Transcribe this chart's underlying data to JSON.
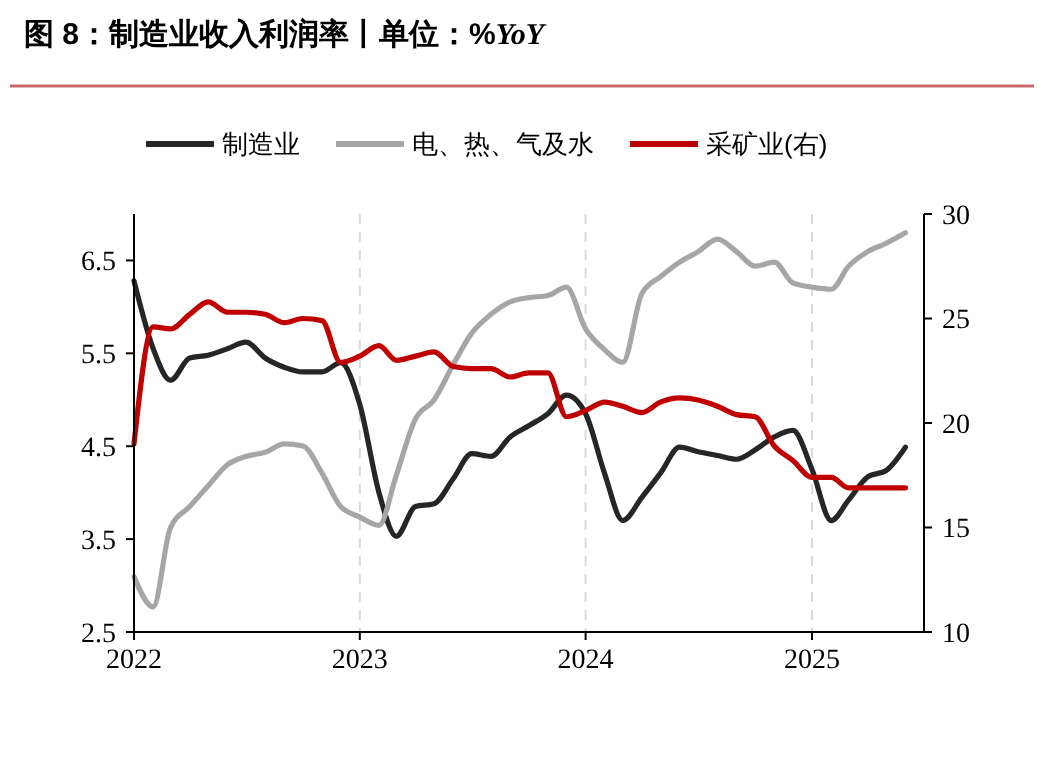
{
  "chart_data": {
    "type": "line",
    "title": "图 8：制造业收入利润率丨单位：%YoY",
    "xlim": [
      "2022-01",
      "2025-07"
    ],
    "xticks": [
      {
        "value": "2022-01",
        "label": "2022"
      },
      {
        "value": "2023-01",
        "label": "2023"
      },
      {
        "value": "2024-01",
        "label": "2024"
      },
      {
        "value": "2025-01",
        "label": "2025"
      }
    ],
    "ylim": [
      2.5,
      7
    ],
    "yticks": [
      2.5,
      3.5,
      4.5,
      5.5,
      6.5
    ],
    "y2lim": [
      10,
      30
    ],
    "y2ticks": [
      10,
      15,
      20,
      25,
      30
    ],
    "grid": "x",
    "legend": "top",
    "marker": "none",
    "line_style": "solid",
    "series": [
      {
        "name": "制造业",
        "color": "#262626",
        "x": [
          "2022-01",
          "2022-02",
          "2022-03",
          "2022-04",
          "2022-05",
          "2022-06",
          "2022-07",
          "2022-08",
          "2022-09",
          "2022-10",
          "2022-11",
          "2022-12",
          "2023-01",
          "2023-02",
          "2023-03",
          "2023-04",
          "2023-05",
          "2023-06",
          "2023-07",
          "2023-08",
          "2023-09",
          "2023-10",
          "2023-11",
          "2023-12",
          "2024-01",
          "2024-02",
          "2024-03",
          "2024-04",
          "2024-05",
          "2024-06",
          "2024-07",
          "2024-08",
          "2024-09",
          "2024-10",
          "2024-11",
          "2024-12",
          "2025-01",
          "2025-02",
          "2025-03",
          "2025-04",
          "2025-05",
          "2025-06"
        ],
        "values": [
          6.28,
          5.55,
          5.21,
          5.45,
          5.48,
          5.55,
          5.62,
          5.45,
          5.35,
          5.3,
          5.3,
          5.4,
          4.95,
          4.0,
          3.53,
          3.85,
          3.88,
          4.15,
          4.42,
          4.39,
          4.6,
          4.72,
          4.85,
          5.05,
          4.85,
          4.2,
          3.7,
          3.95,
          4.21,
          4.49,
          4.44,
          4.4,
          4.36,
          4.46,
          4.6,
          4.67,
          4.25,
          3.7,
          3.92,
          4.17,
          4.24,
          4.49
        ]
      },
      {
        "name": "电、热、气及水",
        "color": "#a6a6a6",
        "axis": "y2",
        "x": [
          "2022-01",
          "2022-02",
          "2022-03",
          "2022-04",
          "2022-05",
          "2022-06",
          "2022-07",
          "2022-08",
          "2022-09",
          "2022-10",
          "2022-11",
          "2022-12",
          "2023-01",
          "2023-02",
          "2023-03",
          "2023-04",
          "2023-05",
          "2023-06",
          "2023-07",
          "2023-08",
          "2023-09",
          "2023-10",
          "2023-11",
          "2023-12",
          "2024-01",
          "2024-02",
          "2024-03",
          "2024-04",
          "2024-05",
          "2024-06",
          "2024-07",
          "2024-08",
          "2024-09",
          "2024-10",
          "2024-11",
          "2024-12",
          "2025-01",
          "2025-02",
          "2025-03",
          "2025-04",
          "2025-05",
          "2025-06"
        ],
        "values": [
          12.65,
          11.2,
          15.0,
          16.0,
          17.0,
          18.0,
          18.4,
          18.6,
          19.0,
          18.9,
          17.6,
          16.0,
          15.5,
          15.1,
          17.5,
          20.2,
          21.1,
          22.8,
          24.3,
          25.2,
          25.8,
          26.0,
          26.1,
          26.5,
          24.5,
          23.5,
          22.9,
          26.2,
          27.0,
          27.7,
          28.2,
          28.8,
          28.2,
          27.5,
          27.7,
          26.7,
          26.5,
          26.4,
          27.5,
          28.2,
          28.6,
          29.1
        ]
      },
      {
        "name": "采矿业(右)",
        "color": "#c00000",
        "axis": "y2",
        "x": [
          "2022-01",
          "2022-02",
          "2022-03",
          "2022-04",
          "2022-05",
          "2022-06",
          "2022-07",
          "2022-08",
          "2022-09",
          "2022-10",
          "2022-11",
          "2022-12",
          "2023-01",
          "2023-02",
          "2023-03",
          "2023-04",
          "2023-05",
          "2023-06",
          "2023-07",
          "2023-08",
          "2023-09",
          "2023-10",
          "2023-11",
          "2023-12",
          "2024-01",
          "2024-02",
          "2024-03",
          "2024-04",
          "2024-05",
          "2024-06",
          "2024-07",
          "2024-08",
          "2024-09",
          "2024-10",
          "2024-11",
          "2024-12",
          "2025-01",
          "2025-02",
          "2025-03",
          "2025-04",
          "2025-05",
          "2025-06"
        ],
        "values": [
          19.0,
          24.6,
          24.5,
          25.2,
          25.8,
          25.3,
          25.3,
          25.2,
          24.8,
          25.0,
          24.9,
          22.9,
          23.2,
          23.7,
          23.0,
          23.2,
          23.4,
          22.7,
          22.6,
          22.6,
          22.2,
          22.4,
          22.4,
          20.3,
          20.6,
          21.0,
          20.8,
          20.5,
          21.0,
          21.2,
          21.1,
          20.8,
          20.4,
          20.3,
          18.9,
          18.2,
          17.4,
          17.4,
          16.9,
          16.9,
          16.9,
          16.9
        ]
      }
    ]
  }
}
